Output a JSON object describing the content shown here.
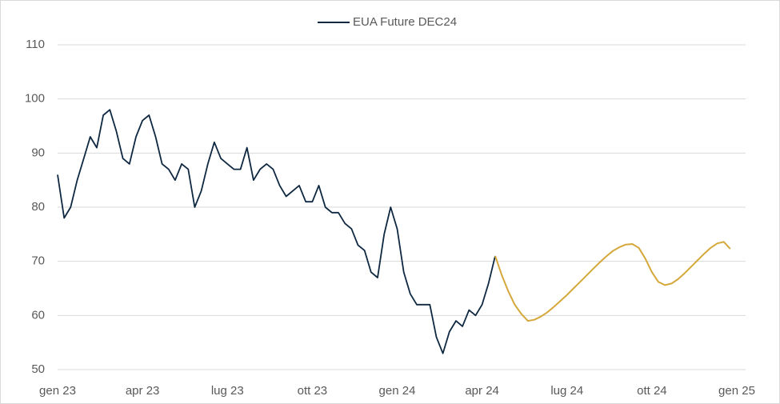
{
  "chart_data": {
    "type": "line",
    "categories": [
      "gen 23",
      null,
      null,
      null,
      null,
      null,
      null,
      null,
      null,
      null,
      null,
      null,
      null,
      "apr 23",
      null,
      null,
      null,
      null,
      null,
      null,
      null,
      null,
      null,
      null,
      null,
      null,
      "lug 23",
      null,
      null,
      null,
      null,
      null,
      null,
      null,
      null,
      null,
      null,
      null,
      null,
      "ott 23",
      null,
      null,
      null,
      null,
      null,
      null,
      null,
      null,
      null,
      null,
      null,
      null,
      "gen 24",
      null,
      null,
      null,
      null,
      null,
      null,
      null,
      null,
      null,
      null,
      null,
      null,
      "apr 24",
      null,
      null,
      null,
      null,
      null,
      null,
      null,
      null,
      null,
      null,
      null,
      null,
      "lug 24",
      null,
      null,
      null,
      null,
      null,
      null,
      null,
      null,
      null,
      null,
      null,
      null,
      "ott 24",
      null,
      null,
      null,
      null,
      null,
      null,
      null,
      null,
      null,
      null,
      null,
      null,
      "gen 25"
    ],
    "series": [
      {
        "name": "EUA Future DEC24",
        "color": "#0e2841",
        "values": [
          86,
          78,
          80,
          85,
          89,
          93,
          91,
          97,
          98,
          94,
          89,
          88,
          93,
          96,
          97,
          93,
          88,
          87,
          85,
          88,
          87,
          80,
          83,
          88,
          92,
          89,
          88,
          87,
          87,
          91,
          85,
          87,
          88,
          87,
          84,
          82,
          83,
          84,
          81,
          81,
          84,
          80,
          79,
          79,
          77,
          76,
          73,
          72,
          68,
          67,
          75,
          80,
          76,
          68,
          64,
          62,
          62,
          62,
          56,
          53,
          57,
          59,
          58,
          61,
          60,
          62,
          66,
          71,
          null,
          null,
          null,
          null,
          null,
          null,
          null,
          null,
          null,
          null,
          null,
          null,
          null,
          null,
          null,
          null,
          null,
          null,
          null,
          null,
          null,
          null,
          null,
          null,
          null,
          null,
          null,
          null,
          null,
          null,
          null,
          null,
          null,
          null,
          null,
          null,
          null
        ]
      },
      {
        "color": "#d4a83a",
        "values": [
          null,
          null,
          null,
          null,
          null,
          null,
          null,
          null,
          null,
          null,
          null,
          null,
          null,
          null,
          null,
          null,
          null,
          null,
          null,
          null,
          null,
          null,
          null,
          null,
          null,
          null,
          null,
          null,
          null,
          null,
          null,
          null,
          null,
          null,
          null,
          null,
          null,
          null,
          null,
          null,
          null,
          null,
          null,
          null,
          null,
          null,
          null,
          null,
          null,
          null,
          null,
          null,
          null,
          null,
          null,
          null,
          null,
          null,
          null,
          null,
          null,
          null,
          null,
          null,
          null,
          null,
          null,
          71,
          67.5,
          64.5,
          62,
          60.3,
          59,
          59.2,
          59.8,
          60.6,
          61.6,
          62.7,
          63.8,
          65,
          66.2,
          67.4,
          68.6,
          69.8,
          70.9,
          71.9,
          72.6,
          73.1,
          73.2,
          72.5,
          70.5,
          68,
          66.2,
          65.6,
          65.9,
          66.7,
          67.8,
          69,
          70.2,
          71.4,
          72.5,
          73.3,
          73.6,
          72.3,
          null
        ]
      }
    ],
    "ylim": [
      50,
      110
    ],
    "yticks": [
      50,
      60,
      70,
      80,
      90,
      100,
      110
    ],
    "grid": true
  }
}
